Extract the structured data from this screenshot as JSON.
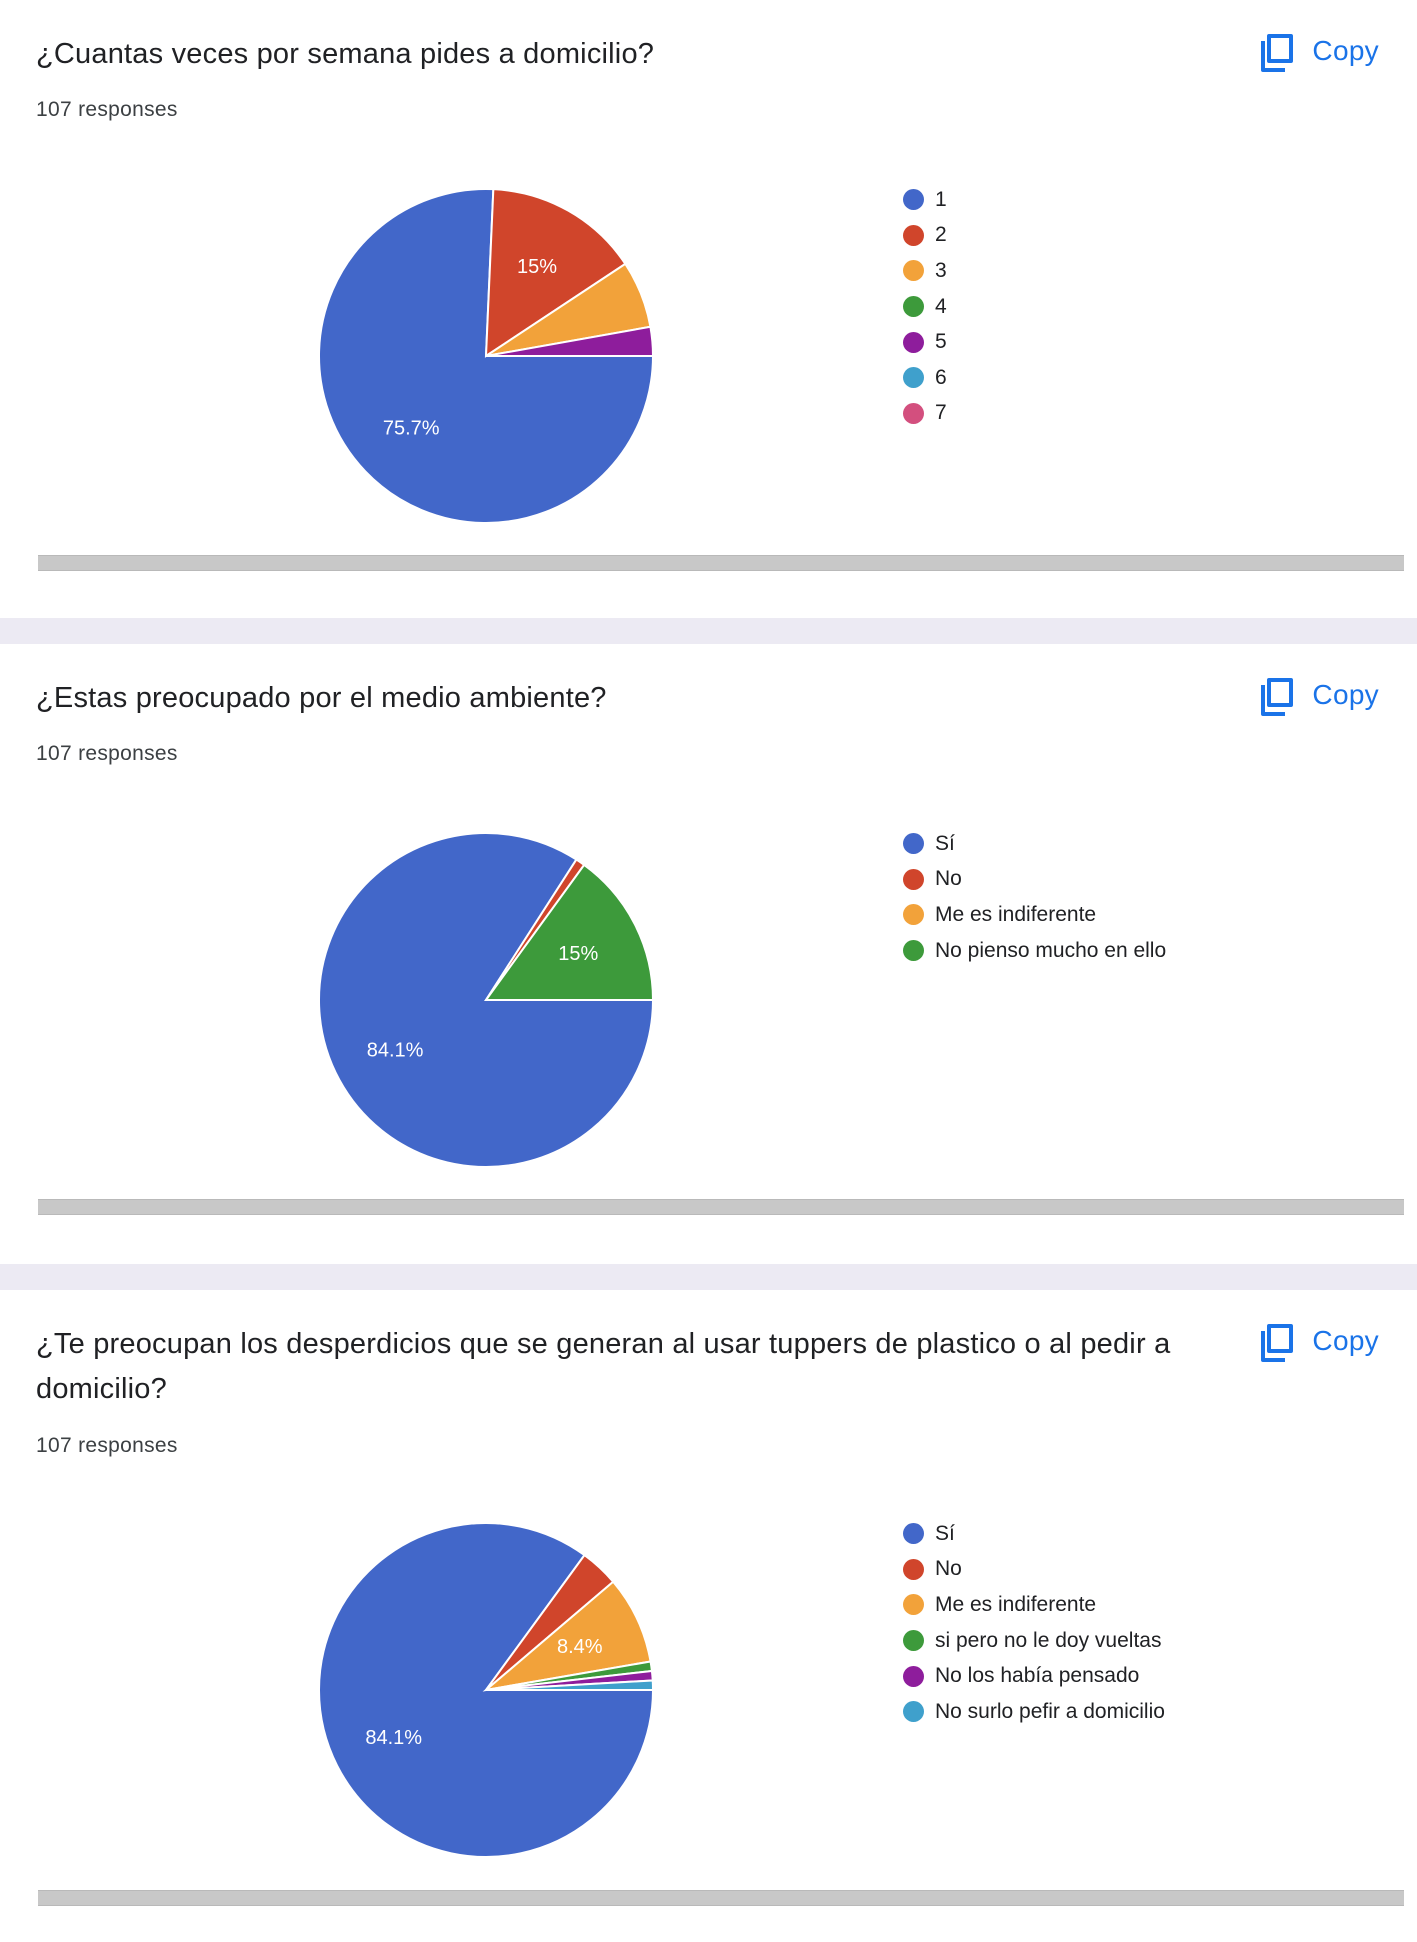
{
  "copy_label": "Copy",
  "cards": [
    {
      "question": "¿Cuantas veces por semana pides a domicilio?",
      "responses": "107 responses",
      "chart_data": {
        "type": "pie",
        "categories": [
          "1",
          "2",
          "3",
          "4",
          "5",
          "6",
          "7"
        ],
        "values": [
          75.7,
          15.0,
          6.5,
          0,
          2.8,
          0,
          0
        ],
        "data_labels": [
          "75.7%",
          "15%",
          "",
          "",
          "",
          "",
          ""
        ],
        "colors": [
          "#4267c9",
          "#d0452b",
          "#f2a23a",
          "#3d9a3b",
          "#8e1d9c",
          "#3fa0cc",
          "#d34f7e"
        ]
      }
    },
    {
      "question": "¿Estas preocupado por el medio ambiente?",
      "responses": "107 responses",
      "chart_data": {
        "type": "pie",
        "categories": [
          "Sí",
          "No",
          "Me es indiferente",
          "No pienso mucho en ello"
        ],
        "values": [
          84.1,
          0.9,
          0,
          15.0
        ],
        "data_labels": [
          "84.1%",
          "",
          "",
          "15%"
        ],
        "colors": [
          "#4267c9",
          "#d0452b",
          "#f2a23a",
          "#3d9a3b"
        ]
      }
    },
    {
      "question": "¿Te preocupan los desperdicios que se generan al usar tuppers de plastico o al pedir a domicilio?",
      "responses": "107 responses",
      "chart_data": {
        "type": "pie",
        "categories": [
          "Sí",
          "No",
          "Me es indiferente",
          "si pero no le doy vueltas",
          "No los había pensado",
          "No surlo pefir a domicilio"
        ],
        "values": [
          84.1,
          3.7,
          8.4,
          0.9,
          0.9,
          0.9
        ],
        "data_labels": [
          "84.1%",
          "",
          "8.4%",
          "",
          "",
          ""
        ],
        "colors": [
          "#4267c9",
          "#d0452b",
          "#f2a23a",
          "#3d9a3b",
          "#8e1d9c",
          "#3fa0cc"
        ]
      }
    }
  ]
}
